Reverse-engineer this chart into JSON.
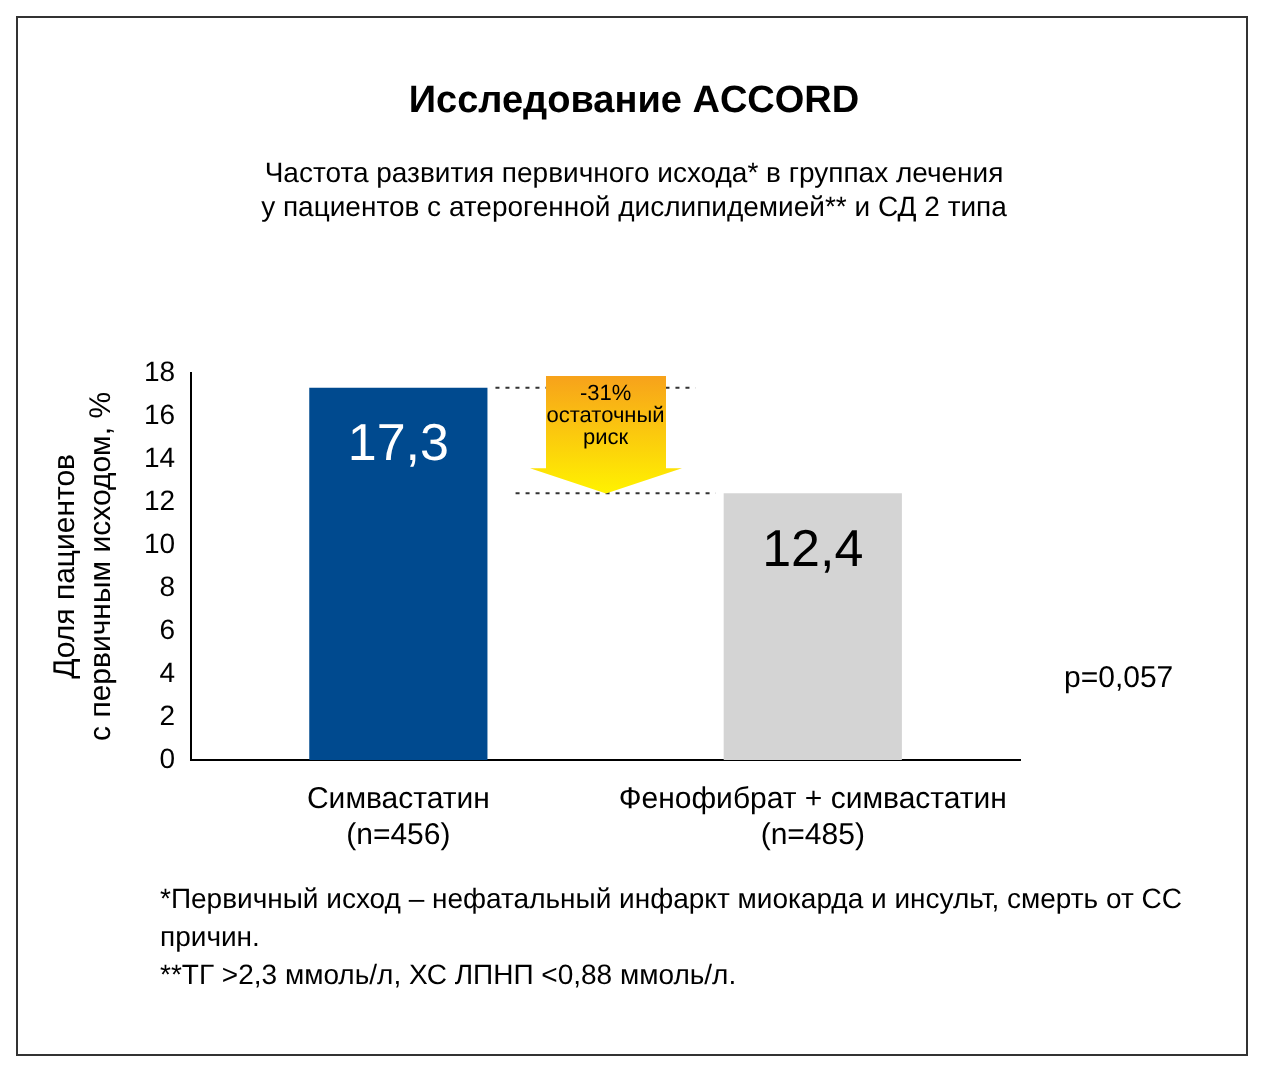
{
  "chart_data": {
    "type": "bar",
    "title": "Исследование ACCORD",
    "subtitle": "Частота развития первичного исхода* в группах лечения\nу пациентов с атерогенной дислипидемией** и СД 2 типа",
    "ylabel": "Доля пациентов\nс первичным исходом, %",
    "categories": [
      "Симвастатин\n(n=456)",
      "Фенофибрат + симвастатин\n(n=485)"
    ],
    "values": [
      17.3,
      12.4
    ],
    "colors": [
      "#004a8f",
      "#d4d4d4"
    ],
    "value_labels": [
      "17,3",
      "12,4"
    ],
    "ylim": [
      0,
      18
    ],
    "yticks": [
      0,
      2,
      4,
      6,
      8,
      10,
      12,
      14,
      16,
      18
    ],
    "grid": false,
    "legend": false,
    "ref_lines": [
      {
        "axis": "y",
        "value": 17.3,
        "line_style": "dotted"
      },
      {
        "axis": "y",
        "value": 12.4,
        "line_style": "dotted"
      }
    ],
    "annotations": [
      "-31%\nостаточный\nриск",
      "p=0,057",
      "*Первичный исход – нефатальный инфаркт миокарда и инсульт, смерть от СС причин.",
      "**ТГ >2,3 ммоль/л, ХС ЛПНП <0,88 ммоль/л."
    ]
  }
}
